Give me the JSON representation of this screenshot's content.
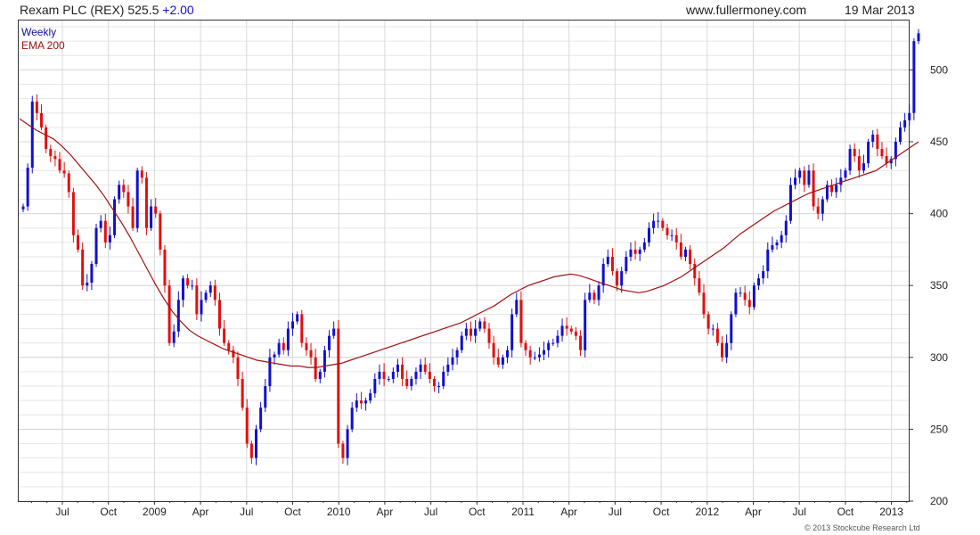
{
  "header": {
    "title": "Rexam PLC (REX) 525.5",
    "change": "+2.00",
    "site": "www.fullermoney.com",
    "date": "19 Mar 2013"
  },
  "legend": {
    "interval": "Weekly",
    "ema": "EMA 200"
  },
  "copyright": "© 2013 Stockcube Research Ltd",
  "colors": {
    "up": "#1010d0",
    "down": "#e01010",
    "ema": "#a01010",
    "grid": "#d8d8d8",
    "frame": "#333333",
    "title_change": "#1010d0",
    "legend_interval": "#1010a0",
    "legend_ema": "#a01010"
  },
  "chart_data": {
    "type": "candlestick",
    "interval": "Weekly",
    "ylim": [
      200,
      535
    ],
    "y_ticks": [
      200,
      250,
      300,
      350,
      400,
      450,
      500
    ],
    "x_tick_labels": [
      "Jul",
      "Oct",
      "2009",
      "Apr",
      "Jul",
      "Oct",
      "2010",
      "Apr",
      "Jul",
      "Oct",
      "2011",
      "Apr",
      "Jul",
      "Oct",
      "2012",
      "Apr",
      "Jul",
      "Oct",
      "2013"
    ],
    "series": [
      {
        "name": "Weekly",
        "closes": [
          405,
          432,
          478,
          470,
          460,
          445,
          440,
          438,
          430,
          428,
          415,
          385,
          375,
          350,
          352,
          365,
          390,
          395,
          380,
          385,
          410,
          420,
          415,
          405,
          390,
          430,
          425,
          390,
          405,
          400,
          375,
          350,
          310,
          318,
          340,
          355,
          350,
          350,
          330,
          340,
          345,
          350,
          340,
          320,
          310,
          305,
          300,
          285,
          265,
          240,
          230,
          250,
          265,
          280,
          300,
          302,
          310,
          305,
          320,
          325,
          330,
          310,
          305,
          300,
          285,
          290,
          305,
          315,
          320,
          240,
          230,
          250,
          265,
          270,
          268,
          270,
          275,
          285,
          290,
          285,
          285,
          290,
          295,
          285,
          280,
          285,
          290,
          295,
          290,
          285,
          280,
          280,
          290,
          295,
          300,
          305,
          315,
          320,
          315,
          320,
          325,
          320,
          310,
          300,
          295,
          300,
          305,
          330,
          340,
          310,
          305,
          300,
          300,
          302,
          305,
          310,
          310,
          315,
          322,
          320,
          318,
          315,
          305,
          340,
          345,
          340,
          350,
          365,
          370,
          360,
          350,
          360,
          370,
          375,
          372,
          375,
          380,
          390,
          395,
          395,
          390,
          385,
          385,
          380,
          370,
          375,
          365,
          355,
          345,
          330,
          320,
          320,
          310,
          300,
          310,
          330,
          345,
          345,
          340,
          335,
          350,
          355,
          360,
          375,
          378,
          380,
          385,
          395,
          420,
          425,
          430,
          420,
          430,
          405,
          400,
          410,
          420,
          415,
          420,
          425,
          430,
          445,
          440,
          430,
          435,
          450,
          455,
          445,
          440,
          435,
          438,
          450,
          460,
          465,
          470,
          520,
          525.5
        ]
      },
      {
        "name": "EMA 200",
        "values": [
          466,
          462,
          458,
          455,
          452,
          447,
          441,
          434,
          427,
          420,
          412,
          403,
          394,
          384,
          373,
          362,
          351,
          341,
          332,
          325,
          319,
          315,
          312,
          309,
          306,
          304,
          302,
          300,
          298,
          297,
          296,
          295,
          294,
          294,
          293,
          293,
          294,
          295,
          296,
          298,
          300,
          302,
          304,
          306,
          308,
          310,
          312,
          314,
          316,
          318,
          320,
          322,
          324,
          327,
          330,
          333,
          336,
          340,
          344,
          347,
          350,
          352,
          354,
          356,
          357,
          358,
          357,
          355,
          353,
          351,
          349,
          347,
          346,
          345,
          346,
          348,
          350,
          353,
          356,
          360,
          364,
          368,
          372,
          376,
          381,
          386,
          390,
          394,
          398,
          402,
          405,
          408,
          411,
          414,
          416,
          418,
          420,
          422,
          424,
          426,
          428,
          430,
          434,
          438,
          442,
          446,
          450
        ]
      }
    ]
  }
}
